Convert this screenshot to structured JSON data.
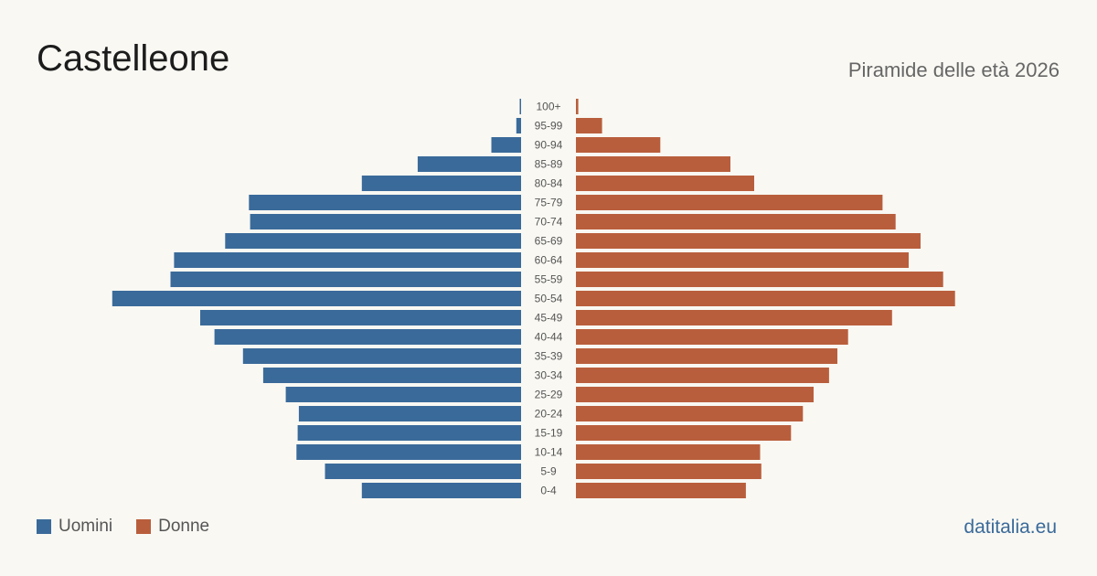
{
  "header": {
    "title": "Castelleone",
    "subtitle": "Piramide delle età 2026"
  },
  "footer": {
    "source": "datitalia.eu"
  },
  "colors": {
    "men": "#3a6a9a",
    "women": "#b95e3c",
    "background": "#f9f8f3"
  },
  "chart_data": {
    "type": "bar",
    "orientation": "horizontal-pyramid",
    "categories": [
      "100+",
      "95-99",
      "90-94",
      "85-89",
      "80-84",
      "75-79",
      "70-74",
      "65-69",
      "60-64",
      "55-59",
      "50-54",
      "45-49",
      "40-44",
      "35-39",
      "30-34",
      "25-29",
      "20-24",
      "15-19",
      "10-14",
      "5-9",
      "0-4"
    ],
    "series": [
      {
        "name": "Uomini",
        "values": [
          1,
          4,
          25,
          87,
          134,
          229,
          228,
          249,
          292,
          295,
          344,
          270,
          258,
          234,
          217,
          198,
          187,
          188,
          189,
          165,
          134
        ]
      },
      {
        "name": "Donne",
        "values": [
          2,
          22,
          71,
          130,
          150,
          258,
          269,
          290,
          280,
          309,
          319,
          266,
          229,
          220,
          213,
          200,
          191,
          181,
          155,
          156,
          143
        ]
      }
    ],
    "xlim": [
      0,
      350
    ],
    "legend": "bottom-left",
    "grid": false
  }
}
